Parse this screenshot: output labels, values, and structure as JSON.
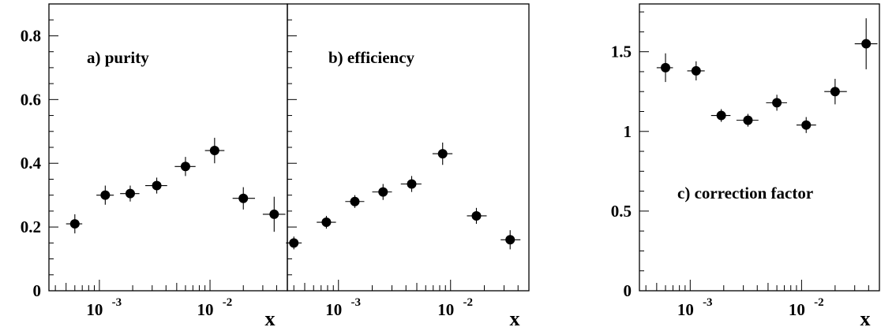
{
  "chart_data": [
    {
      "type": "scatter",
      "panel": "a",
      "annotation": "a) purity",
      "xlabel": "x",
      "ylabel": "",
      "xscale": "log",
      "xlim": [
        0.00035,
        0.05
      ],
      "ylim": [
        0,
        0.9
      ],
      "yticks": [
        {
          "value": 0,
          "label": "0"
        },
        {
          "value": 0.2,
          "label": "0.2"
        },
        {
          "value": 0.4,
          "label": "0.4"
        },
        {
          "value": 0.6,
          "label": "0.6"
        },
        {
          "value": 0.8,
          "label": "0.8"
        }
      ],
      "xticks": [
        {
          "value": 0.001,
          "label_base": "10",
          "label_exp": "-3"
        },
        {
          "value": 0.01,
          "label_base": "10",
          "label_exp": "-2"
        }
      ],
      "grid": false,
      "points": [
        {
          "x": 0.0006,
          "y": 0.21,
          "xlo": 0.0005,
          "xhi": 0.0007,
          "yerr": 0.03
        },
        {
          "x": 0.00113,
          "y": 0.3,
          "xlo": 0.00094,
          "xhi": 0.00135,
          "yerr": 0.03
        },
        {
          "x": 0.0019,
          "y": 0.305,
          "xlo": 0.00154,
          "xhi": 0.0023,
          "yerr": 0.025
        },
        {
          "x": 0.0033,
          "y": 0.33,
          "xlo": 0.0026,
          "xhi": 0.0041,
          "yerr": 0.025
        },
        {
          "x": 0.006,
          "y": 0.39,
          "xlo": 0.0048,
          "xhi": 0.0074,
          "yerr": 0.03
        },
        {
          "x": 0.011,
          "y": 0.44,
          "xlo": 0.009,
          "xhi": 0.0135,
          "yerr": 0.04
        },
        {
          "x": 0.02,
          "y": 0.29,
          "xlo": 0.016,
          "xhi": 0.0255,
          "yerr": 0.035
        },
        {
          "x": 0.038,
          "y": 0.24,
          "xlo": 0.03,
          "xhi": 0.048,
          "yerr": 0.055
        }
      ]
    },
    {
      "type": "scatter",
      "panel": "b",
      "annotation": "b) efficiency",
      "xlabel": "x",
      "ylabel": "",
      "xscale": "log",
      "xlim": [
        0.00035,
        0.05
      ],
      "ylim": [
        0,
        0.9
      ],
      "yticks": [],
      "xticks": [
        {
          "value": 0.001,
          "label_base": "10",
          "label_exp": "-3"
        },
        {
          "value": 0.01,
          "label_base": "10",
          "label_exp": "-2"
        }
      ],
      "grid": false,
      "points": [
        {
          "x": 0.0004,
          "y": 0.15,
          "xlo": 0.00034,
          "xhi": 0.00047,
          "yerr": 0.02
        },
        {
          "x": 0.00078,
          "y": 0.215,
          "xlo": 0.00064,
          "xhi": 0.00095,
          "yerr": 0.02
        },
        {
          "x": 0.0014,
          "y": 0.28,
          "xlo": 0.00115,
          "xhi": 0.0017,
          "yerr": 0.02
        },
        {
          "x": 0.0025,
          "y": 0.31,
          "xlo": 0.002,
          "xhi": 0.003,
          "yerr": 0.025
        },
        {
          "x": 0.0045,
          "y": 0.335,
          "xlo": 0.0036,
          "xhi": 0.0055,
          "yerr": 0.025
        },
        {
          "x": 0.0085,
          "y": 0.43,
          "xlo": 0.0069,
          "xhi": 0.0104,
          "yerr": 0.035
        },
        {
          "x": 0.017,
          "y": 0.235,
          "xlo": 0.014,
          "xhi": 0.021,
          "yerr": 0.025
        },
        {
          "x": 0.034,
          "y": 0.16,
          "xlo": 0.028,
          "xhi": 0.042,
          "yerr": 0.03
        }
      ]
    },
    {
      "type": "scatter",
      "panel": "c",
      "annotation": "c) correction factor",
      "xlabel": "x",
      "ylabel": "",
      "xscale": "log",
      "xlim": [
        0.00035,
        0.05
      ],
      "ylim": [
        0,
        1.8
      ],
      "yticks": [
        {
          "value": 0,
          "label": "0"
        },
        {
          "value": 0.5,
          "label": "0.5"
        },
        {
          "value": 1,
          "label": "1"
        },
        {
          "value": 1.5,
          "label": "1.5"
        }
      ],
      "xticks": [
        {
          "value": 0.001,
          "label_base": "10",
          "label_exp": "-3"
        },
        {
          "value": 0.01,
          "label_base": "10",
          "label_exp": "-2"
        }
      ],
      "grid": false,
      "points": [
        {
          "x": 0.0006,
          "y": 1.4,
          "xlo": 0.0005,
          "xhi": 0.0007,
          "yerr": 0.09
        },
        {
          "x": 0.00113,
          "y": 1.38,
          "xlo": 0.00094,
          "xhi": 0.00135,
          "yerr": 0.06
        },
        {
          "x": 0.0019,
          "y": 1.1,
          "xlo": 0.00154,
          "xhi": 0.0023,
          "yerr": 0.04
        },
        {
          "x": 0.0033,
          "y": 1.07,
          "xlo": 0.0026,
          "xhi": 0.0041,
          "yerr": 0.04
        },
        {
          "x": 0.006,
          "y": 1.18,
          "xlo": 0.0048,
          "xhi": 0.0074,
          "yerr": 0.05
        },
        {
          "x": 0.011,
          "y": 1.04,
          "xlo": 0.009,
          "xhi": 0.0135,
          "yerr": 0.05
        },
        {
          "x": 0.02,
          "y": 1.25,
          "xlo": 0.016,
          "xhi": 0.0255,
          "yerr": 0.08
        },
        {
          "x": 0.038,
          "y": 1.55,
          "xlo": 0.03,
          "xhi": 0.048,
          "yerr": 0.16
        }
      ]
    }
  ]
}
